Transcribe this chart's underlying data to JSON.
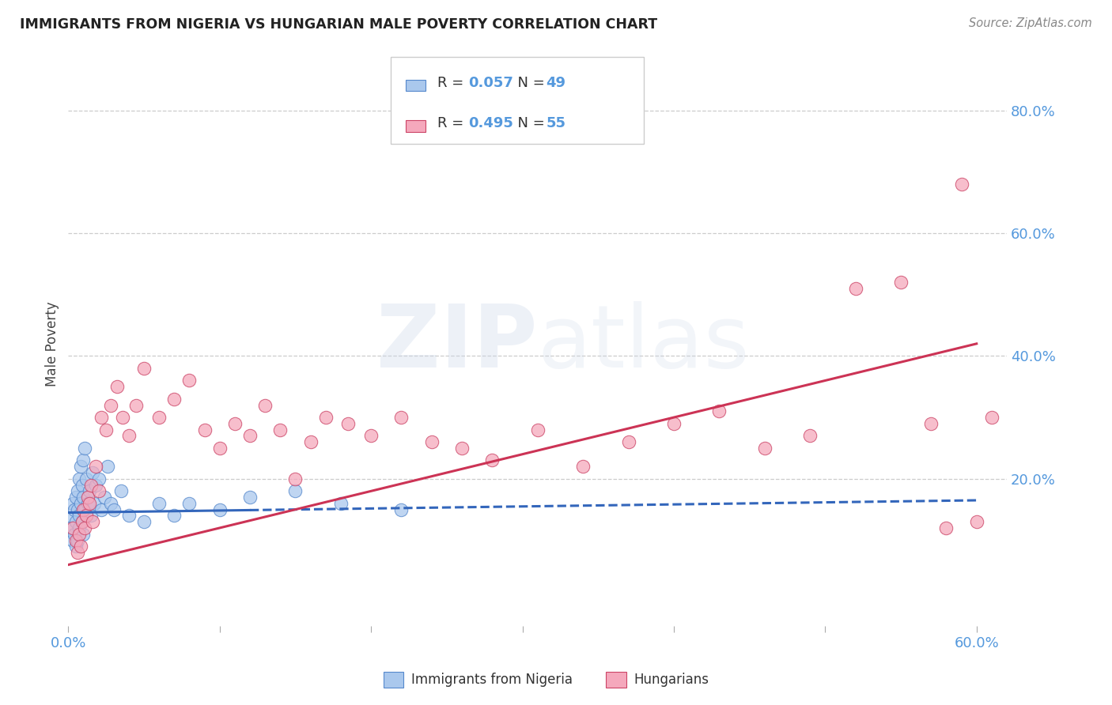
{
  "title": "IMMIGRANTS FROM NIGERIA VS HUNGARIAN MALE POVERTY CORRELATION CHART",
  "source": "Source: ZipAtlas.com",
  "ylabel": "Male Poverty",
  "xlim": [
    0.0,
    0.62
  ],
  "ylim": [
    -0.04,
    0.88
  ],
  "background_color": "#ffffff",
  "grid_color": "#cccccc",
  "watermark": "ZIPatlas",
  "series1_label": "Immigrants from Nigeria",
  "series1_R": "0.057",
  "series1_N": "49",
  "series1_color": "#aac8ed",
  "series1_edge_color": "#5588cc",
  "series1_line_color": "#3366bb",
  "series2_label": "Hungarians",
  "series2_R": "0.495",
  "series2_N": "55",
  "series2_color": "#f5a8bc",
  "series2_edge_color": "#cc4466",
  "series2_line_color": "#cc3355",
  "nigeria_x": [
    0.001,
    0.002,
    0.003,
    0.003,
    0.004,
    0.004,
    0.005,
    0.005,
    0.005,
    0.006,
    0.006,
    0.006,
    0.007,
    0.007,
    0.007,
    0.008,
    0.008,
    0.009,
    0.009,
    0.01,
    0.01,
    0.01,
    0.011,
    0.011,
    0.012,
    0.012,
    0.013,
    0.014,
    0.015,
    0.016,
    0.017,
    0.018,
    0.02,
    0.022,
    0.024,
    0.026,
    0.028,
    0.03,
    0.035,
    0.04,
    0.05,
    0.06,
    0.07,
    0.08,
    0.1,
    0.12,
    0.15,
    0.18,
    0.22
  ],
  "nigeria_y": [
    0.14,
    0.12,
    0.16,
    0.1,
    0.15,
    0.11,
    0.17,
    0.13,
    0.09,
    0.15,
    0.18,
    0.1,
    0.14,
    0.2,
    0.12,
    0.16,
    0.22,
    0.13,
    0.19,
    0.17,
    0.11,
    0.23,
    0.15,
    0.25,
    0.14,
    0.2,
    0.16,
    0.18,
    0.14,
    0.21,
    0.16,
    0.19,
    0.2,
    0.15,
    0.17,
    0.22,
    0.16,
    0.15,
    0.18,
    0.14,
    0.13,
    0.16,
    0.14,
    0.16,
    0.15,
    0.17,
    0.18,
    0.16,
    0.15
  ],
  "hungarian_x": [
    0.003,
    0.005,
    0.006,
    0.007,
    0.008,
    0.009,
    0.01,
    0.011,
    0.012,
    0.013,
    0.014,
    0.015,
    0.016,
    0.018,
    0.02,
    0.022,
    0.025,
    0.028,
    0.032,
    0.036,
    0.04,
    0.045,
    0.05,
    0.06,
    0.07,
    0.08,
    0.09,
    0.1,
    0.11,
    0.12,
    0.13,
    0.14,
    0.15,
    0.16,
    0.17,
    0.185,
    0.2,
    0.22,
    0.24,
    0.26,
    0.28,
    0.31,
    0.34,
    0.37,
    0.4,
    0.43,
    0.46,
    0.49,
    0.52,
    0.55,
    0.57,
    0.58,
    0.59,
    0.6,
    0.61
  ],
  "hungarian_y": [
    0.12,
    0.1,
    0.08,
    0.11,
    0.09,
    0.13,
    0.15,
    0.12,
    0.14,
    0.17,
    0.16,
    0.19,
    0.13,
    0.22,
    0.18,
    0.3,
    0.28,
    0.32,
    0.35,
    0.3,
    0.27,
    0.32,
    0.38,
    0.3,
    0.33,
    0.36,
    0.28,
    0.25,
    0.29,
    0.27,
    0.32,
    0.28,
    0.2,
    0.26,
    0.3,
    0.29,
    0.27,
    0.3,
    0.26,
    0.25,
    0.23,
    0.28,
    0.22,
    0.26,
    0.29,
    0.31,
    0.25,
    0.27,
    0.51,
    0.52,
    0.29,
    0.12,
    0.68,
    0.13,
    0.3
  ],
  "nigeria_line_x0": 0.0,
  "nigeria_line_x1": 0.6,
  "nigeria_line_y0": 0.145,
  "nigeria_line_y1": 0.165,
  "hungarian_line_x0": 0.0,
  "hungarian_line_x1": 0.6,
  "hungarian_line_y0": 0.06,
  "hungarian_line_y1": 0.42
}
